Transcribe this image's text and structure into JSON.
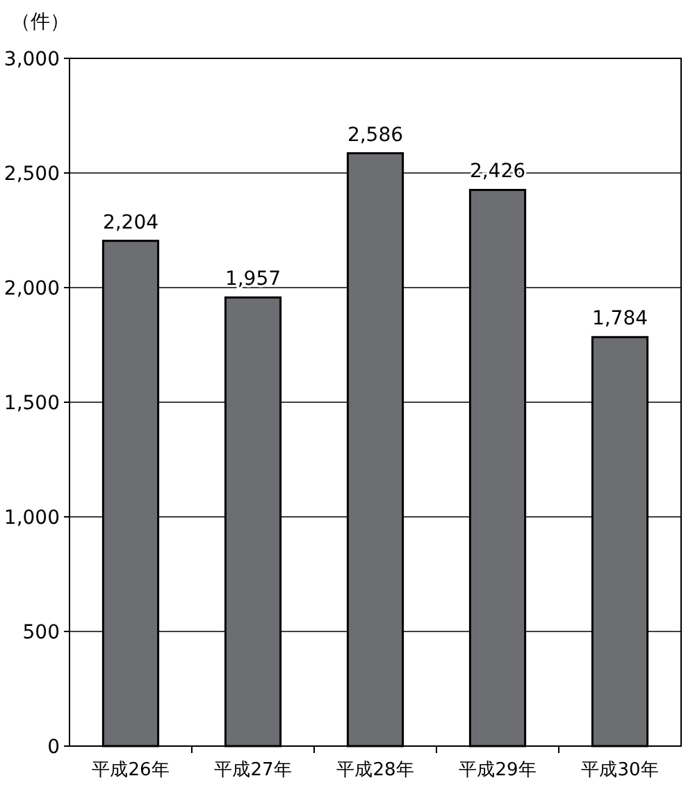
{
  "chart_data": {
    "type": "bar",
    "ylabel": "（件）",
    "categories": [
      "平成26年",
      "平成27年",
      "平成28年",
      "平成29年",
      "平成30年"
    ],
    "values": [
      2204,
      1957,
      2586,
      2426,
      1784
    ],
    "value_labels": [
      "2,204",
      "1,957",
      "2,586",
      "2,426",
      "1,784"
    ],
    "color": "#6d6e71",
    "ylim": [
      0,
      3000
    ],
    "yticks": [
      {
        "value": 0,
        "label": "0"
      },
      {
        "value": 500,
        "label": "500"
      },
      {
        "value": 1000,
        "label": "1,000"
      },
      {
        "value": 1500,
        "label": "1,500"
      },
      {
        "value": 2000,
        "label": "2,000"
      },
      {
        "value": 2500,
        "label": "2,500"
      },
      {
        "value": 3000,
        "label": "3,000"
      }
    ],
    "grid": "y"
  }
}
